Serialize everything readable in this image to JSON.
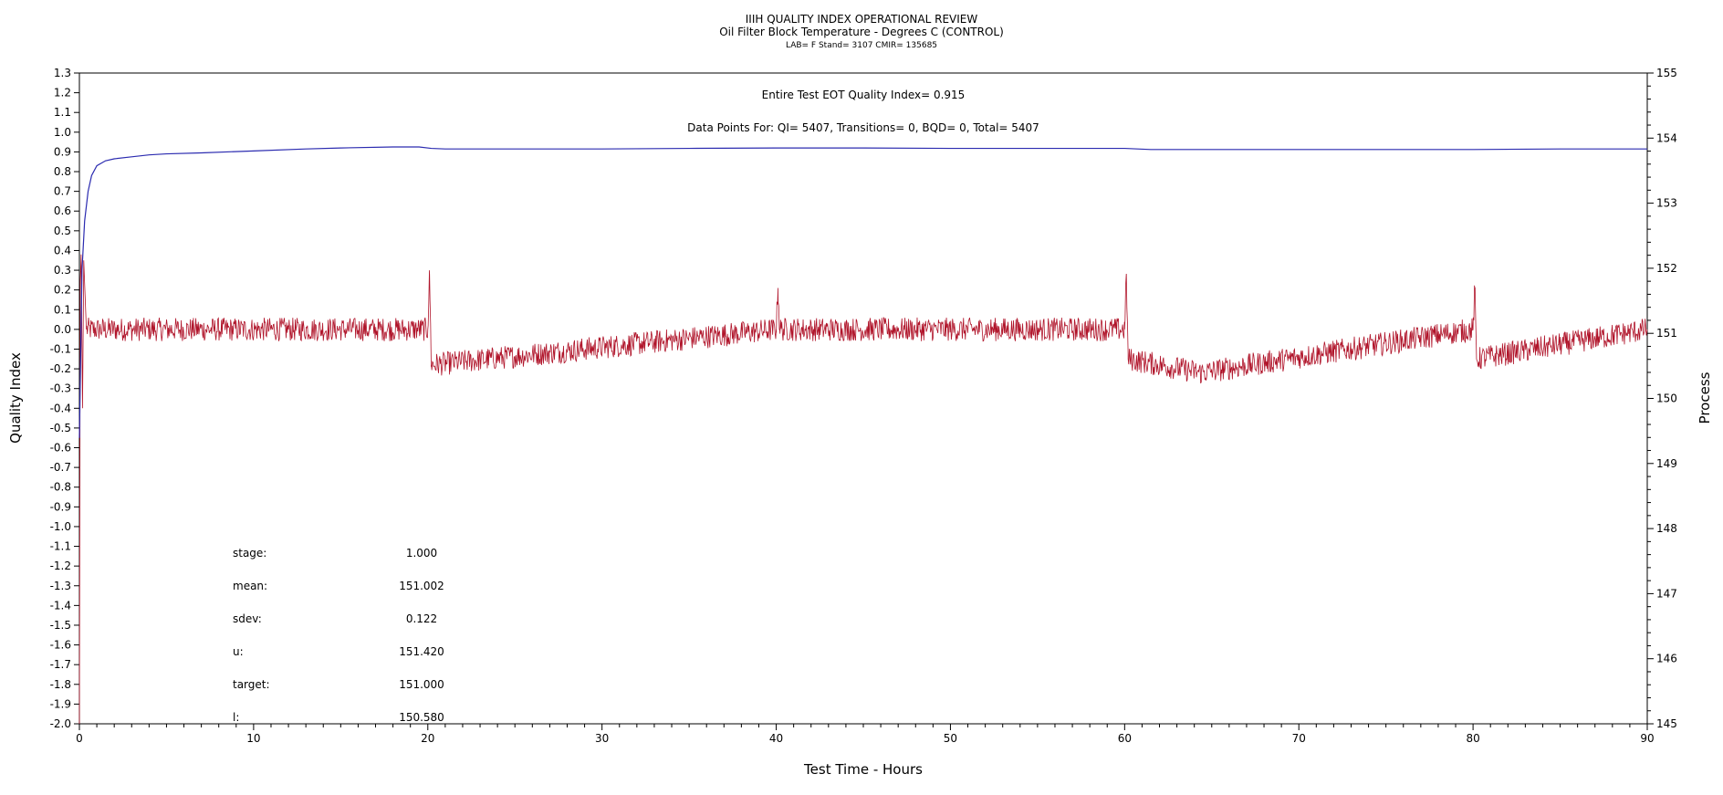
{
  "header": {
    "title": "IIIH QUALITY INDEX OPERATIONAL REVIEW",
    "subtitle": "Oil Filter Block Temperature - Degrees C (CONTROL)",
    "subtitle2": "LAB= F Stand= 3107 CMIR= 135685"
  },
  "annotations": {
    "qi_line": "Entire Test EOT Quality Index=   0.915",
    "points_line": "Data Points For: QI=  5407, Transitions=      0, BQD=      0, Total=  5407"
  },
  "stats": [
    {
      "label": "stage:",
      "value": "1.000"
    },
    {
      "label": "mean:",
      "value": "151.002"
    },
    {
      "label": "sdev:",
      "value": "0.122"
    },
    {
      "label": "u:",
      "value": "151.420"
    },
    {
      "label": "target:",
      "value": "151.000"
    },
    {
      "label": "l:",
      "value": "150.580"
    }
  ],
  "chart_data": {
    "type": "line",
    "xlabel": "Test Time - Hours",
    "ylabel_left": "Quality Index",
    "ylabel_right": "Process",
    "xlim": [
      0,
      90
    ],
    "ylim_left": [
      -2.0,
      1.3
    ],
    "ylim_right": [
      145,
      155
    ],
    "x_ticks": [
      0,
      10,
      20,
      30,
      40,
      50,
      60,
      70,
      80,
      90
    ],
    "y_left_ticks": [
      "1.3",
      "1.2",
      "1.1",
      "1.0",
      "0.9",
      "0.8",
      "0.7",
      "0.6",
      "0.5",
      "0.4",
      "0.3",
      "0.2",
      "0.1",
      "0.0",
      "-0.1",
      "-0.2",
      "-0.3",
      "-0.4",
      "-0.5",
      "-0.6",
      "-0.7",
      "-0.8",
      "-0.9",
      "-1.0",
      "-1.1",
      "-1.2",
      "-1.3",
      "-1.4",
      "-1.5",
      "-1.6",
      "-1.7",
      "-1.8",
      "-1.9",
      "-2.0"
    ],
    "y_right_ticks": [
      "155",
      "154",
      "153",
      "152",
      "151",
      "150",
      "149",
      "148",
      "147",
      "146",
      "145"
    ],
    "series": [
      {
        "axis": "left",
        "color": "#2b2bb0",
        "x": [
          0,
          0.15,
          0.3,
          0.5,
          0.7,
          1.0,
          1.5,
          2,
          3,
          4,
          5,
          7,
          10,
          13,
          15,
          18,
          19.5,
          20.2,
          21,
          25,
          30,
          35,
          40,
          45,
          50,
          55,
          60,
          61.5,
          65,
          70,
          75,
          80,
          85,
          90
        ],
        "values": [
          -0.55,
          0.3,
          0.55,
          0.7,
          0.78,
          0.83,
          0.855,
          0.865,
          0.875,
          0.885,
          0.89,
          0.895,
          0.905,
          0.915,
          0.92,
          0.925,
          0.925,
          0.918,
          0.915,
          0.915,
          0.915,
          0.918,
          0.92,
          0.92,
          0.918,
          0.918,
          0.918,
          0.912,
          0.912,
          0.912,
          0.912,
          0.912,
          0.915,
          0.915
        ]
      },
      {
        "axis": "left",
        "color": "#b0142a",
        "noise_amplitude": 0.06,
        "x": [
          0,
          0.05,
          0.1,
          0.18,
          0.25,
          0.4,
          20,
          20.1,
          20.2,
          40,
          40.1,
          40.2,
          60,
          60.1,
          60.2,
          64.4,
          80,
          80.1,
          80.2,
          90
        ],
        "values": [
          -2.0,
          0.25,
          0.38,
          -0.4,
          0.35,
          0.0,
          0.0,
          0.28,
          -0.18,
          0.0,
          0.21,
          0.0,
          0.0,
          0.28,
          -0.15,
          -0.22,
          0.0,
          0.21,
          -0.15,
          0.0
        ]
      }
    ]
  }
}
